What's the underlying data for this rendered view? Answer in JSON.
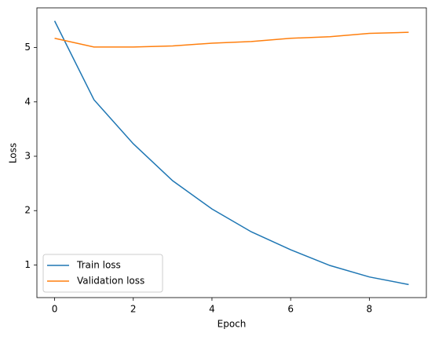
{
  "chart_data": {
    "type": "line",
    "x_label": "Epoch",
    "y_label": "Loss",
    "x": [
      0,
      1,
      2,
      3,
      4,
      5,
      6,
      7,
      8,
      9
    ],
    "series": [
      {
        "name": "Train loss",
        "color": "#1f77b4",
        "values": [
          5.49,
          4.04,
          3.23,
          2.55,
          2.03,
          1.61,
          1.28,
          0.99,
          0.78,
          0.64
        ]
      },
      {
        "name": "Validation loss",
        "color": "#ff7f0e",
        "values": [
          5.17,
          5.01,
          5.01,
          5.03,
          5.08,
          5.11,
          5.17,
          5.2,
          5.26,
          5.28
        ]
      }
    ],
    "xlim": [
      -0.45,
      9.45
    ],
    "ylim": [
      0.4,
      5.73
    ],
    "xticks": [
      0,
      2,
      4,
      6,
      8
    ],
    "yticks": [
      1,
      2,
      3,
      4,
      5
    ],
    "grid": false,
    "legend": "lower left"
  }
}
